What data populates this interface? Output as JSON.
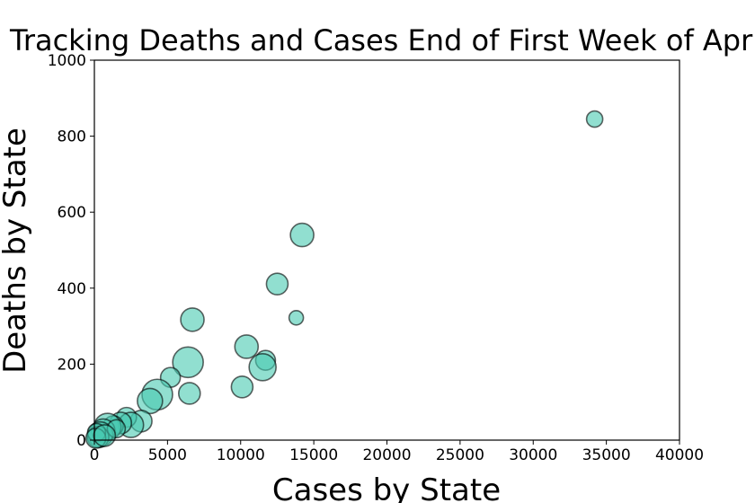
{
  "chart_data": {
    "type": "scatter",
    "title": "Tracking Deaths and Cases End of First Week of April",
    "xlabel": "Cases by State",
    "ylabel": "Deaths by State",
    "xlim": [
      0,
      40000
    ],
    "ylim": [
      0,
      1000
    ],
    "xticks": [
      "0",
      "5000",
      "10000",
      "15000",
      "20000",
      "25000",
      "30000",
      "35000",
      "40000"
    ],
    "yticks": [
      "0",
      "200",
      "400",
      "600",
      "800",
      "1000"
    ],
    "grid": false,
    "marker_color": "#48c9b0",
    "marker_edge_color": "#000000",
    "points": [
      {
        "x": 34200,
        "y": 845,
        "size": 9
      },
      {
        "x": 14200,
        "y": 540,
        "size": 13
      },
      {
        "x": 12500,
        "y": 411,
        "size": 12
      },
      {
        "x": 13800,
        "y": 322,
        "size": 8
      },
      {
        "x": 6700,
        "y": 317,
        "size": 13
      },
      {
        "x": 10400,
        "y": 246,
        "size": 13
      },
      {
        "x": 11700,
        "y": 210,
        "size": 11
      },
      {
        "x": 11500,
        "y": 192,
        "size": 15
      },
      {
        "x": 6400,
        "y": 205,
        "size": 17
      },
      {
        "x": 10100,
        "y": 140,
        "size": 12
      },
      {
        "x": 6500,
        "y": 123,
        "size": 12
      },
      {
        "x": 5200,
        "y": 165,
        "size": 11
      },
      {
        "x": 4300,
        "y": 120,
        "size": 17
      },
      {
        "x": 3800,
        "y": 103,
        "size": 14
      },
      {
        "x": 3200,
        "y": 50,
        "size": 12
      },
      {
        "x": 2200,
        "y": 60,
        "size": 11
      },
      {
        "x": 2500,
        "y": 40,
        "size": 14
      },
      {
        "x": 1800,
        "y": 45,
        "size": 12
      },
      {
        "x": 1300,
        "y": 38,
        "size": 11
      },
      {
        "x": 900,
        "y": 35,
        "size": 15
      },
      {
        "x": 600,
        "y": 25,
        "size": 13
      },
      {
        "x": 400,
        "y": 15,
        "size": 14
      },
      {
        "x": 250,
        "y": 8,
        "size": 12
      },
      {
        "x": 150,
        "y": 20,
        "size": 10
      },
      {
        "x": 100,
        "y": 5,
        "size": 11
      },
      {
        "x": 1500,
        "y": 30,
        "size": 10
      },
      {
        "x": 700,
        "y": 12,
        "size": 12
      }
    ]
  }
}
